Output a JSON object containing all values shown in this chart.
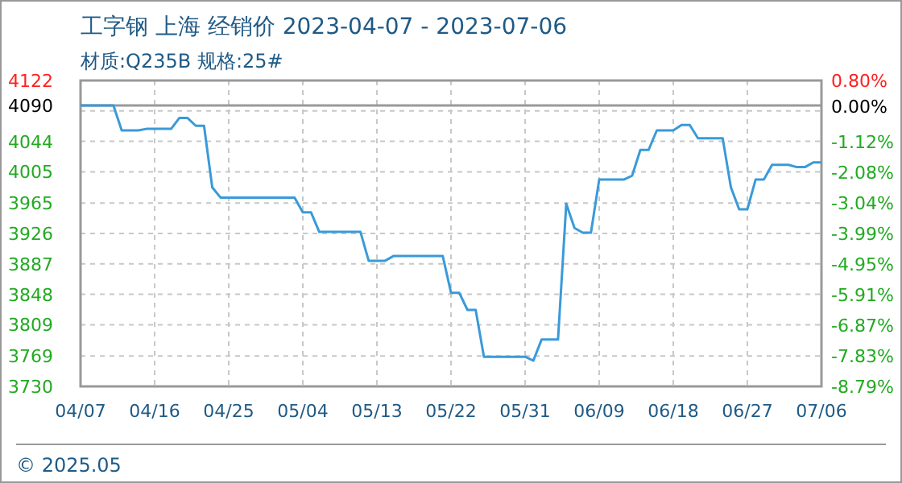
{
  "chart_data": {
    "type": "line",
    "title": "工字钢 上海 经销价 2023-04-07 - 2023-07-06",
    "subtitle": "材质:Q235B 规格:25#",
    "annotations": [
      "© 2025.05"
    ],
    "x": [
      "2023-04-07",
      "2023-04-11",
      "2023-04-12",
      "2023-04-14",
      "2023-04-15",
      "2023-04-18",
      "2023-04-19",
      "2023-04-20",
      "2023-04-21",
      "2023-04-22",
      "2023-04-23",
      "2023-04-24",
      "2023-05-03",
      "2023-05-04",
      "2023-05-05",
      "2023-05-06",
      "2023-05-11",
      "2023-05-12",
      "2023-05-14",
      "2023-05-15",
      "2023-05-21",
      "2023-05-22",
      "2023-05-23",
      "2023-05-24",
      "2023-05-25",
      "2023-05-26",
      "2023-05-31",
      "2023-06-01",
      "2023-06-02",
      "2023-06-04",
      "2023-06-05",
      "2023-06-06",
      "2023-06-07",
      "2023-06-08",
      "2023-06-09",
      "2023-06-12",
      "2023-06-13",
      "2023-06-14",
      "2023-06-15",
      "2023-06-16",
      "2023-06-18",
      "2023-06-19",
      "2023-06-20",
      "2023-06-21",
      "2023-06-24",
      "2023-06-25",
      "2023-06-26",
      "2023-06-27",
      "2023-06-28",
      "2023-06-29",
      "2023-06-30",
      "2023-07-02",
      "2023-07-03",
      "2023-07-04",
      "2023-07-05",
      "2023-07-06"
    ],
    "series": [
      {
        "color": "#3a9ad9",
        "values": [
          4090,
          4090,
          4058,
          4058,
          4060,
          4060,
          4074,
          4074,
          4064,
          4064,
          3985,
          3972,
          3972,
          3953,
          3953,
          3928,
          3928,
          3891,
          3891,
          3897,
          3897,
          3850,
          3850,
          3828,
          3828,
          3768,
          3768,
          3763,
          3790,
          3790,
          3964,
          3933,
          3927,
          3927,
          3995,
          3995,
          4000,
          4033,
          4033,
          4058,
          4058,
          4065,
          4065,
          4048,
          4048,
          3985,
          3957,
          3957,
          3995,
          3995,
          4014,
          4014,
          4011,
          4011,
          4017,
          4017
        ]
      }
    ],
    "xlim": [
      "2023-04-07",
      "2023-07-06"
    ],
    "xticks": [
      {
        "value": "2023-04-07",
        "label": "04/07"
      },
      {
        "value": "2023-04-16",
        "label": "04/16"
      },
      {
        "value": "2023-04-25",
        "label": "04/25"
      },
      {
        "value": "2023-05-04",
        "label": "05/04"
      },
      {
        "value": "2023-05-13",
        "label": "05/13"
      },
      {
        "value": "2023-05-22",
        "label": "05/22"
      },
      {
        "value": "2023-05-31",
        "label": "05/31"
      },
      {
        "value": "2023-06-09",
        "label": "06/09"
      },
      {
        "value": "2023-06-18",
        "label": "06/18"
      },
      {
        "value": "2023-06-27",
        "label": "06/27"
      },
      {
        "value": "2023-07-06",
        "label": "07/06"
      }
    ],
    "ylim": [
      3730,
      4122
    ],
    "yticks": [
      4122,
      4090,
      {
        "value": 4083,
        "label": null
      },
      4044,
      4005,
      3965,
      3926,
      3887,
      3848,
      3809,
      3769,
      3730
    ],
    "y2lim": [
      -8.79,
      0.8
    ],
    "y2ticks": [
      {
        "value": 0.8,
        "label": "0.80%"
      },
      {
        "value": 0,
        "label": "0.00%"
      },
      {
        "value": -1.12,
        "label": "-1.12%"
      },
      {
        "value": -2.08,
        "label": "-2.08%"
      },
      {
        "value": -3.04,
        "label": "-3.04%"
      },
      {
        "value": -3.99,
        "label": "-3.99%"
      },
      {
        "value": -4.95,
        "label": "-4.95%"
      },
      {
        "value": -5.91,
        "label": "-5.91%"
      },
      {
        "value": -6.87,
        "label": "-6.87%"
      },
      {
        "value": -7.83,
        "label": "-7.83%"
      },
      {
        "value": -8.79,
        "label": "-8.79%"
      }
    ],
    "ref_lines": [
      {
        "axis": "y",
        "value": 4090,
        "color": "#999999",
        "line_style": "solid"
      }
    ],
    "grid": true
  }
}
